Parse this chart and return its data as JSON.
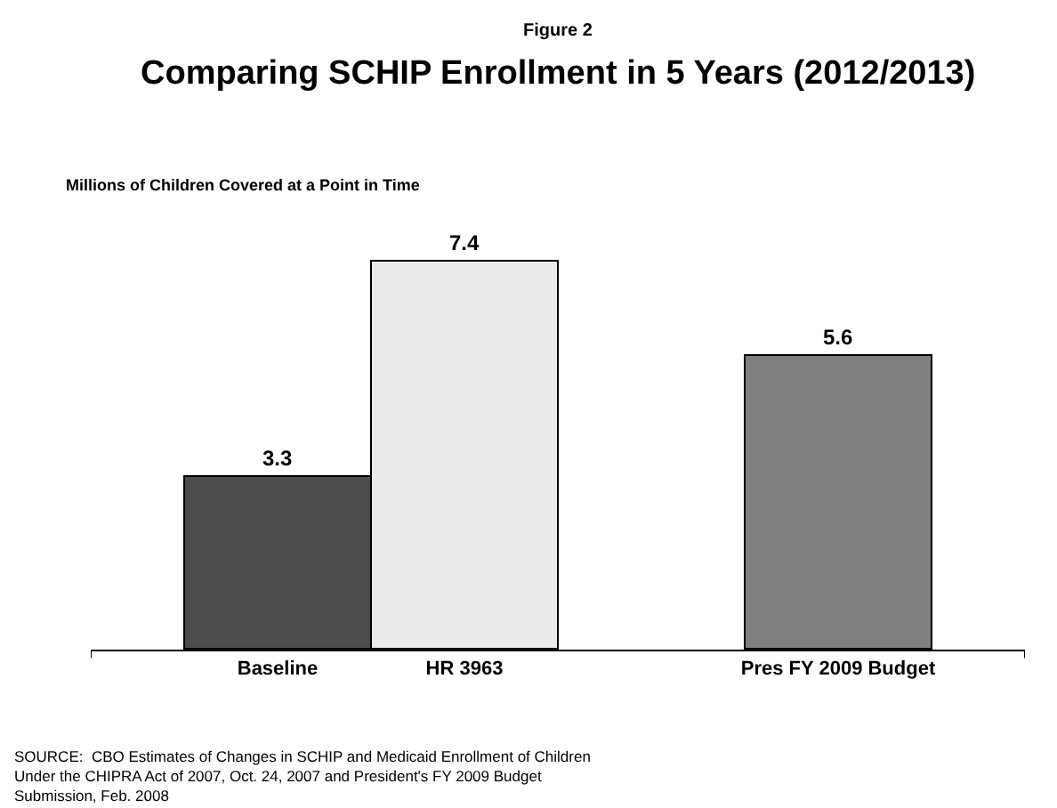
{
  "chart_data": {
    "type": "bar",
    "subtitle": "Figure 2",
    "title": "Comparing SCHIP Enrollment in 5 Years (2012/2013)",
    "ylabel": "Millions of Children Covered at a Point in Time",
    "categories": [
      "Baseline",
      "HR 3963",
      null,
      "Pres FY 2009 Budget"
    ],
    "values": [
      3.3,
      7.4,
      null,
      5.6
    ],
    "colors": [
      "#4d4d4d",
      "#eaeaea",
      "#ffffff",
      "#808080"
    ],
    "data_labels": true,
    "annotations": [
      "SOURCE:  CBO Estimates of Changes in SCHIP and Medicaid Enrollment of Children\nUnder the CHIPRA Act of 2007, Oct. 24, 2007 and President's FY 2009 Budget\nSubmission, Feb. 2008"
    ]
  }
}
